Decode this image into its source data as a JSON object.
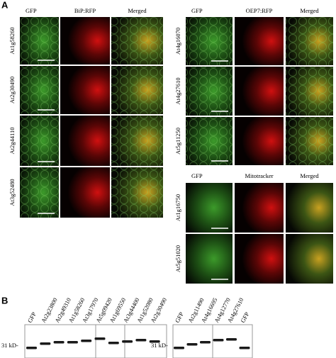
{
  "panel_a": {
    "label": "A",
    "groups": [
      {
        "headers": [
          "GFP",
          "BiP:RFP",
          "Merged"
        ],
        "rows": [
          "At1g58260",
          "At2g30490",
          "At2g44110",
          "At3g52480"
        ]
      },
      {
        "headers": [
          "GFP",
          "OEP7:RFP",
          "Merged"
        ],
        "rows": [
          "At4g16070",
          "At4g27610",
          "At5g11250"
        ]
      },
      {
        "headers": [
          "GFP",
          "Mitotracker",
          "Merged"
        ],
        "rows": [
          "At1g16750",
          "At5g51020"
        ]
      }
    ]
  },
  "panel_b": {
    "label": "B",
    "blots": [
      {
        "marker": "31 kD-",
        "lanes": [
          "GFP",
          "At2g23800",
          "At2g49310",
          "At1g58260",
          "At3g17970",
          "At5g09420",
          "At1g69550",
          "At3g44400",
          "At1g52080",
          "At2g30490"
        ]
      },
      {
        "marker": "31 kD-",
        "lanes": [
          "GFP",
          "At2g11490",
          "At4g16695",
          "At4g12770",
          "At4g27610",
          "GFP"
        ]
      }
    ]
  }
}
